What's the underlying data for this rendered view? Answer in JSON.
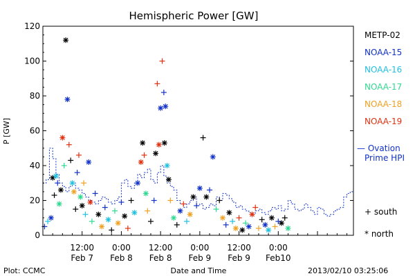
{
  "chart_data": {
    "type": "scatter",
    "title": "Hemispheric Power [GW]",
    "ylabel": "P [GW]",
    "xlabel": "Date and Time",
    "ylim": [
      0,
      120
    ],
    "yticks": [
      0,
      20,
      40,
      60,
      80,
      100,
      120
    ],
    "xlim_hours": [
      0,
      95
    ],
    "xticks": [
      {
        "t": 12,
        "top": "12:00",
        "bottom": "Feb 7"
      },
      {
        "t": 24,
        "top": "0:00",
        "bottom": "Feb 8"
      },
      {
        "t": 36,
        "top": "12:00",
        "bottom": "Feb 8"
      },
      {
        "t": 48,
        "top": "0:00",
        "bottom": "Feb 9"
      },
      {
        "t": 60,
        "top": "12:00",
        "bottom": "Feb 9"
      },
      {
        "t": 72,
        "top": "0:00",
        "bottom": "Feb10"
      }
    ],
    "footer_left": "Plot: CCMC",
    "footer_right": "2013/02/10 03:25:06",
    "legend": {
      "placement": "right",
      "satellites": [
        {
          "name": "METP-02",
          "color": "#000000"
        },
        {
          "name": "NOAA-15",
          "color": "#1030c8"
        },
        {
          "name": "NOAA-16",
          "color": "#20c0e0"
        },
        {
          "name": "NOAA-17",
          "color": "#30d890"
        },
        {
          "name": "NOAA-18",
          "color": "#f0a020"
        },
        {
          "name": "NOAA-19",
          "color": "#e03010"
        }
      ],
      "ovation_label": [
        "— Ovation",
        "Prime HPI"
      ],
      "ovation_color": "#1030c8",
      "south_label": "+ south",
      "north_label": "* north"
    },
    "ovation": {
      "t": [
        0,
        1,
        2,
        3,
        4,
        5,
        6,
        7,
        8,
        9,
        10,
        11,
        12,
        13,
        14,
        15,
        16,
        17,
        18,
        19,
        20,
        21,
        22,
        23,
        24,
        25,
        26,
        27,
        28,
        29,
        30,
        31,
        32,
        33,
        34,
        35,
        36,
        37,
        38,
        39,
        40,
        41,
        42,
        43,
        44,
        45,
        46,
        47,
        48,
        49,
        50,
        51,
        52,
        53,
        54,
        55,
        56,
        57,
        58,
        59,
        60,
        61,
        62,
        63,
        64,
        65,
        66,
        67,
        68,
        69,
        70,
        71,
        72,
        73,
        74,
        75,
        76,
        77,
        78,
        79,
        80,
        81,
        82,
        83,
        84,
        85,
        86,
        87,
        88,
        89,
        90,
        91,
        92,
        93,
        94,
        95
      ],
      "p": [
        30,
        32,
        50,
        44,
        35,
        30,
        28,
        25,
        28,
        30,
        27,
        26,
        24,
        22,
        20,
        19,
        18,
        20,
        22,
        21,
        19,
        18,
        20,
        22,
        30,
        32,
        28,
        27,
        30,
        35,
        33,
        36,
        38,
        32,
        30,
        36,
        40,
        34,
        30,
        28,
        26,
        20,
        18,
        16,
        18,
        20,
        22,
        17,
        18,
        15,
        16,
        18,
        17,
        22,
        20,
        24,
        23,
        21,
        19,
        16,
        17,
        15,
        14,
        13,
        12,
        14,
        15,
        13,
        12,
        14,
        16,
        15,
        17,
        14,
        15,
        20,
        18,
        15,
        14,
        15,
        18,
        16,
        14,
        12,
        16,
        15,
        12,
        11,
        12,
        14,
        15,
        16,
        22,
        24,
        25,
        26
      ]
    },
    "points": [
      {
        "t": 0.5,
        "p": 5,
        "sat": "NOAA-15",
        "hem": "south"
      },
      {
        "t": 1.5,
        "p": 8,
        "sat": "NOAA-16",
        "hem": "south"
      },
      {
        "t": 2.5,
        "p": 10,
        "sat": "NOAA-15",
        "hem": "north"
      },
      {
        "t": 3,
        "p": 33,
        "sat": "METP-02",
        "hem": "north"
      },
      {
        "t": 3.5,
        "p": 23,
        "sat": "METP-02",
        "hem": "south"
      },
      {
        "t": 4,
        "p": 34,
        "sat": "NOAA-16",
        "hem": "north"
      },
      {
        "t": 4.5,
        "p": 30,
        "sat": "NOAA-15",
        "hem": "south"
      },
      {
        "t": 5,
        "p": 18,
        "sat": "NOAA-17",
        "hem": "north"
      },
      {
        "t": 5.5,
        "p": 26,
        "sat": "METP-02",
        "hem": "north"
      },
      {
        "t": 6,
        "p": 56,
        "sat": "NOAA-19",
        "hem": "north"
      },
      {
        "t": 6.5,
        "p": 40,
        "sat": "NOAA-17",
        "hem": "south"
      },
      {
        "t": 7,
        "p": 112,
        "sat": "METP-02",
        "hem": "north"
      },
      {
        "t": 7.5,
        "p": 78,
        "sat": "NOAA-15",
        "hem": "north"
      },
      {
        "t": 8,
        "p": 52,
        "sat": "NOAA-19",
        "hem": "south"
      },
      {
        "t": 8.5,
        "p": 43,
        "sat": "METP-02",
        "hem": "south"
      },
      {
        "t": 9,
        "p": 30,
        "sat": "NOAA-16",
        "hem": "north"
      },
      {
        "t": 9.5,
        "p": 25,
        "sat": "NOAA-18",
        "hem": "north"
      },
      {
        "t": 10,
        "p": 15,
        "sat": "METP-02",
        "hem": "south"
      },
      {
        "t": 10.5,
        "p": 36,
        "sat": "NOAA-15",
        "hem": "south"
      },
      {
        "t": 11,
        "p": 46,
        "sat": "NOAA-19",
        "hem": "south"
      },
      {
        "t": 11.5,
        "p": 22,
        "sat": "NOAA-17",
        "hem": "north"
      },
      {
        "t": 12,
        "p": 17,
        "sat": "METP-02",
        "hem": "north"
      },
      {
        "t": 12.5,
        "p": 30,
        "sat": "NOAA-18",
        "hem": "south"
      },
      {
        "t": 13,
        "p": 12,
        "sat": "NOAA-16",
        "hem": "south"
      },
      {
        "t": 14,
        "p": 42,
        "sat": "NOAA-15",
        "hem": "north"
      },
      {
        "t": 14.5,
        "p": 19,
        "sat": "NOAA-19",
        "hem": "north"
      },
      {
        "t": 15,
        "p": 8,
        "sat": "NOAA-17",
        "hem": "south"
      },
      {
        "t": 16,
        "p": 24,
        "sat": "NOAA-15",
        "hem": "south"
      },
      {
        "t": 17,
        "p": 12,
        "sat": "METP-02",
        "hem": "north"
      },
      {
        "t": 18,
        "p": 5,
        "sat": "NOAA-18",
        "hem": "north"
      },
      {
        "t": 19,
        "p": 16,
        "sat": "NOAA-15",
        "hem": "south"
      },
      {
        "t": 20,
        "p": 9,
        "sat": "NOAA-16",
        "hem": "north"
      },
      {
        "t": 21,
        "p": 3,
        "sat": "METP-02",
        "hem": "south"
      },
      {
        "t": 22,
        "p": 14,
        "sat": "NOAA-17",
        "hem": "south"
      },
      {
        "t": 23,
        "p": 7,
        "sat": "NOAA-18",
        "hem": "north"
      },
      {
        "t": 24,
        "p": 19,
        "sat": "NOAA-15",
        "hem": "south"
      },
      {
        "t": 25,
        "p": 11,
        "sat": "METP-02",
        "hem": "north"
      },
      {
        "t": 26,
        "p": 4,
        "sat": "NOAA-19",
        "hem": "south"
      },
      {
        "t": 27,
        "p": 20,
        "sat": "METP-02",
        "hem": "south"
      },
      {
        "t": 28,
        "p": 13,
        "sat": "NOAA-16",
        "hem": "north"
      },
      {
        "t": 29,
        "p": 30,
        "sat": "NOAA-15",
        "hem": "north"
      },
      {
        "t": 30,
        "p": 42,
        "sat": "NOAA-19",
        "hem": "north"
      },
      {
        "t": 30.5,
        "p": 53,
        "sat": "METP-02",
        "hem": "north"
      },
      {
        "t": 31,
        "p": 46,
        "sat": "NOAA-19",
        "hem": "south"
      },
      {
        "t": 31.5,
        "p": 24,
        "sat": "NOAA-17",
        "hem": "north"
      },
      {
        "t": 32,
        "p": 14,
        "sat": "NOAA-18",
        "hem": "south"
      },
      {
        "t": 33,
        "p": 8,
        "sat": "METP-02",
        "hem": "south"
      },
      {
        "t": 34,
        "p": 20,
        "sat": "NOAA-15",
        "hem": "south"
      },
      {
        "t": 34.5,
        "p": 47,
        "sat": "METP-02",
        "hem": "north"
      },
      {
        "t": 35,
        "p": 87,
        "sat": "NOAA-19",
        "hem": "south"
      },
      {
        "t": 35.5,
        "p": 52,
        "sat": "NOAA-19",
        "hem": "north"
      },
      {
        "t": 36,
        "p": 73,
        "sat": "NOAA-15",
        "hem": "north"
      },
      {
        "t": 36.5,
        "p": 100,
        "sat": "NOAA-19",
        "hem": "south"
      },
      {
        "t": 37,
        "p": 82,
        "sat": "NOAA-15",
        "hem": "south"
      },
      {
        "t": 37.2,
        "p": 53,
        "sat": "METP-02",
        "hem": "north"
      },
      {
        "t": 37.5,
        "p": 74,
        "sat": "NOAA-15",
        "hem": "north"
      },
      {
        "t": 38,
        "p": 40,
        "sat": "NOAA-16",
        "hem": "north"
      },
      {
        "t": 38.5,
        "p": 32,
        "sat": "METP-02",
        "hem": "north"
      },
      {
        "t": 39,
        "p": 20,
        "sat": "NOAA-18",
        "hem": "south"
      },
      {
        "t": 40,
        "p": 10,
        "sat": "NOAA-17",
        "hem": "north"
      },
      {
        "t": 41,
        "p": 6,
        "sat": "METP-02",
        "hem": "south"
      },
      {
        "t": 42,
        "p": 14,
        "sat": "NOAA-15",
        "hem": "north"
      },
      {
        "t": 43,
        "p": 18,
        "sat": "NOAA-19",
        "hem": "south"
      },
      {
        "t": 44,
        "p": 8,
        "sat": "NOAA-16",
        "hem": "south"
      },
      {
        "t": 45,
        "p": 12,
        "sat": "NOAA-18",
        "hem": "north"
      },
      {
        "t": 46,
        "p": 22,
        "sat": "METP-02",
        "hem": "north"
      },
      {
        "t": 47,
        "p": 17,
        "sat": "NOAA-15",
        "hem": "south"
      },
      {
        "t": 48,
        "p": 27,
        "sat": "NOAA-15",
        "hem": "north"
      },
      {
        "t": 49,
        "p": 56,
        "sat": "METP-02",
        "hem": "south"
      },
      {
        "t": 50,
        "p": 22,
        "sat": "METP-02",
        "hem": "north"
      },
      {
        "t": 51,
        "p": 26,
        "sat": "NOAA-15",
        "hem": "south"
      },
      {
        "t": 52,
        "p": 45,
        "sat": "NOAA-15",
        "hem": "north"
      },
      {
        "t": 53,
        "p": 15,
        "sat": "NOAA-17",
        "hem": "south"
      },
      {
        "t": 54,
        "p": 20,
        "sat": "METP-02",
        "hem": "south"
      },
      {
        "t": 55,
        "p": 10,
        "sat": "NOAA-18",
        "hem": "north"
      },
      {
        "t": 56,
        "p": 6,
        "sat": "NOAA-15",
        "hem": "south"
      },
      {
        "t": 57,
        "p": 13,
        "sat": "METP-02",
        "hem": "north"
      },
      {
        "t": 58,
        "p": 8,
        "sat": "NOAA-16",
        "hem": "south"
      },
      {
        "t": 59,
        "p": 4,
        "sat": "NOAA-18",
        "hem": "north"
      },
      {
        "t": 60,
        "p": 10,
        "sat": "NOAA-19",
        "hem": "south"
      },
      {
        "t": 61,
        "p": 3,
        "sat": "METP-02",
        "hem": "north"
      },
      {
        "t": 62,
        "p": 7,
        "sat": "NOAA-17",
        "hem": "south"
      },
      {
        "t": 63,
        "p": 5,
        "sat": "NOAA-15",
        "hem": "north"
      },
      {
        "t": 64,
        "p": 12,
        "sat": "NOAA-19",
        "hem": "north"
      },
      {
        "t": 65,
        "p": 16,
        "sat": "NOAA-19",
        "hem": "south"
      },
      {
        "t": 66,
        "p": 4,
        "sat": "NOAA-18",
        "hem": "south"
      },
      {
        "t": 67,
        "p": 9,
        "sat": "METP-02",
        "hem": "south"
      },
      {
        "t": 68,
        "p": 6,
        "sat": "NOAA-15",
        "hem": "north"
      },
      {
        "t": 69,
        "p": 3,
        "sat": "NOAA-16",
        "hem": "north"
      },
      {
        "t": 70,
        "p": 10,
        "sat": "METP-02",
        "hem": "north"
      },
      {
        "t": 71,
        "p": 5,
        "sat": "NOAA-18",
        "hem": "south"
      },
      {
        "t": 72,
        "p": 8,
        "sat": "NOAA-15",
        "hem": "south"
      },
      {
        "t": 73,
        "p": 7,
        "sat": "METP-02",
        "hem": "north"
      },
      {
        "t": 74,
        "p": 10,
        "sat": "METP-02",
        "hem": "south"
      },
      {
        "t": 75,
        "p": 4,
        "sat": "NOAA-17",
        "hem": "north"
      }
    ]
  }
}
